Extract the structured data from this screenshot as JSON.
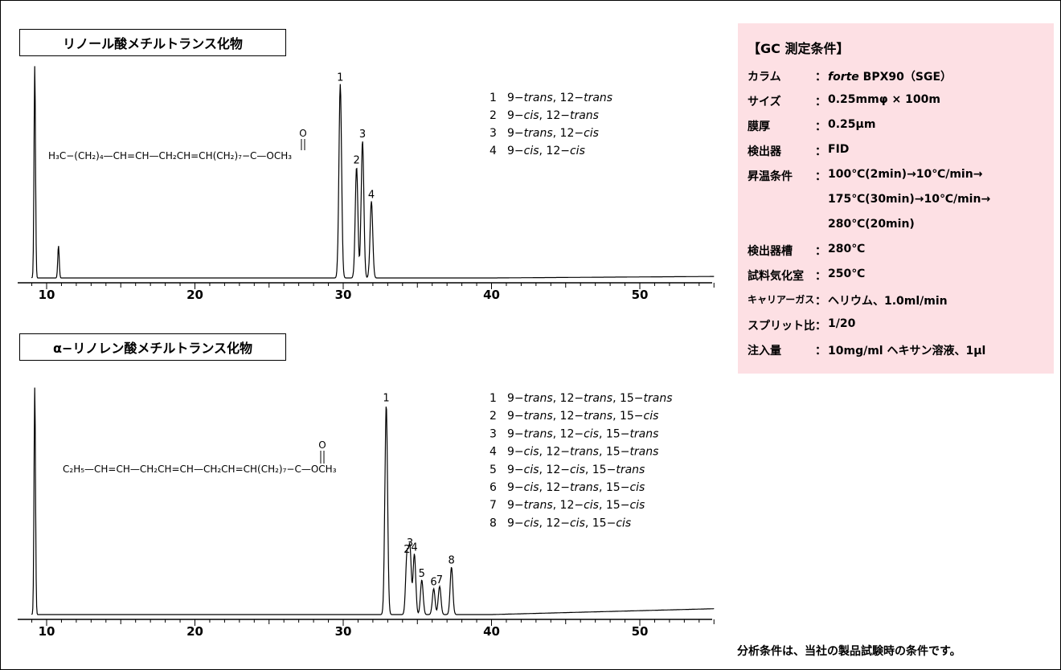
{
  "chart_data": [
    {
      "type": "line",
      "title": "リノール酸メチルトランス化物",
      "xlim": [
        9,
        55
      ],
      "x_ticks": [
        "10",
        "20",
        "30",
        "40",
        "50"
      ],
      "peaks": [
        {
          "rt": 9.2,
          "height": 1.05,
          "label": ""
        },
        {
          "rt": 10.8,
          "height": 0.16,
          "label": ""
        },
        {
          "rt": 29.8,
          "height": 0.96,
          "label": "1"
        },
        {
          "rt": 30.9,
          "height": 0.55,
          "label": "2"
        },
        {
          "rt": 31.3,
          "height": 0.68,
          "label": "3"
        },
        {
          "rt": 31.9,
          "height": 0.38,
          "label": "4"
        }
      ],
      "legend": [
        {
          "num": "1",
          "parts": [
            "9−",
            "trans",
            ", 12−",
            "trans"
          ]
        },
        {
          "num": "2",
          "parts": [
            "9−",
            "cis",
            ", 12−",
            "trans"
          ]
        },
        {
          "num": "3",
          "parts": [
            "9−",
            "trans",
            ", 12−",
            "cis"
          ]
        },
        {
          "num": "4",
          "parts": [
            "9−",
            "cis",
            ", 12−",
            "cis"
          ]
        }
      ],
      "formula": "H₃C−(CH₂)₄—CH=CH—CH₂CH=CH(CH₂)₇−C—OCH₃",
      "formula_carbonyl": "O"
    },
    {
      "type": "line",
      "title": "α−リノレン酸メチルトランス化物",
      "xlim": [
        9,
        55
      ],
      "x_ticks": [
        "10",
        "20",
        "30",
        "40",
        "50"
      ],
      "peaks": [
        {
          "rt": 9.2,
          "height": 1.05,
          "label": ""
        },
        {
          "rt": 32.9,
          "height": 0.97,
          "label": "1"
        },
        {
          "rt": 34.3,
          "height": 0.27,
          "label": "2"
        },
        {
          "rt": 34.5,
          "height": 0.3,
          "label": "3"
        },
        {
          "rt": 34.8,
          "height": 0.28,
          "label": "4"
        },
        {
          "rt": 35.3,
          "height": 0.16,
          "label": "5"
        },
        {
          "rt": 36.1,
          "height": 0.12,
          "label": "6"
        },
        {
          "rt": 36.5,
          "height": 0.13,
          "label": "7"
        },
        {
          "rt": 37.3,
          "height": 0.22,
          "label": "8"
        }
      ],
      "legend": [
        {
          "num": "1",
          "parts": [
            "9−",
            "trans",
            ", 12−",
            "trans",
            ", 15−",
            "trans"
          ]
        },
        {
          "num": "2",
          "parts": [
            "9−",
            "trans",
            ", 12−",
            "trans",
            ", 15−",
            "cis"
          ]
        },
        {
          "num": "3",
          "parts": [
            "9−",
            "trans",
            ", 12−",
            "cis",
            ", 15−",
            "trans"
          ]
        },
        {
          "num": "4",
          "parts": [
            "9−",
            "cis",
            ", 12−",
            "trans",
            ", 15−",
            "trans"
          ]
        },
        {
          "num": "5",
          "parts": [
            "9−",
            "cis",
            ", 12−",
            "cis",
            ", 15−",
            "trans"
          ]
        },
        {
          "num": "6",
          "parts": [
            "9−",
            "cis",
            ", 12−",
            "trans",
            ", 15−",
            "cis"
          ]
        },
        {
          "num": "7",
          "parts": [
            "9−",
            "trans",
            ", 12−",
            "cis",
            ", 15−",
            "cis"
          ]
        },
        {
          "num": "8",
          "parts": [
            "9−",
            "cis",
            ", 12−",
            "cis",
            ", 15−",
            "cis"
          ]
        }
      ],
      "formula": "C₂H₅—CH=CH—CH₂CH=CH—CH₂CH=CH(CH₂)₇−C—OCH₃",
      "formula_carbonyl": "O"
    }
  ],
  "gc_conditions": {
    "title": "【GC 測定条件】",
    "rows": [
      {
        "label": "カラム",
        "value": "forte BPX90（SGE）"
      },
      {
        "label": "サイズ",
        "value": "0.25mmφ × 100m"
      },
      {
        "label": "膜厚",
        "value": "0.25μm"
      },
      {
        "label": "検出器",
        "value": "FID"
      },
      {
        "label": "昇温条件",
        "value": "100℃(2min)→10℃/min→"
      },
      {
        "label": "",
        "value": "175℃(30min)→10℃/min→"
      },
      {
        "label": "",
        "value": "280℃(20min)"
      },
      {
        "label": "検出器槽",
        "value": "280℃"
      },
      {
        "label": "試料気化室",
        "value": "250℃"
      },
      {
        "label": "キャリアーガス",
        "value": "ヘリウム、1.0ml/min"
      },
      {
        "label": "スプリット比",
        "value": "1/20"
      },
      {
        "label": "注入量",
        "value": "10mg/ml ヘキサン溶液、1μl"
      }
    ]
  },
  "footnote": "分析条件は、当社の製品試験時の条件です。",
  "colors": {
    "panel": "#fde0e4",
    "line": "#000000"
  }
}
